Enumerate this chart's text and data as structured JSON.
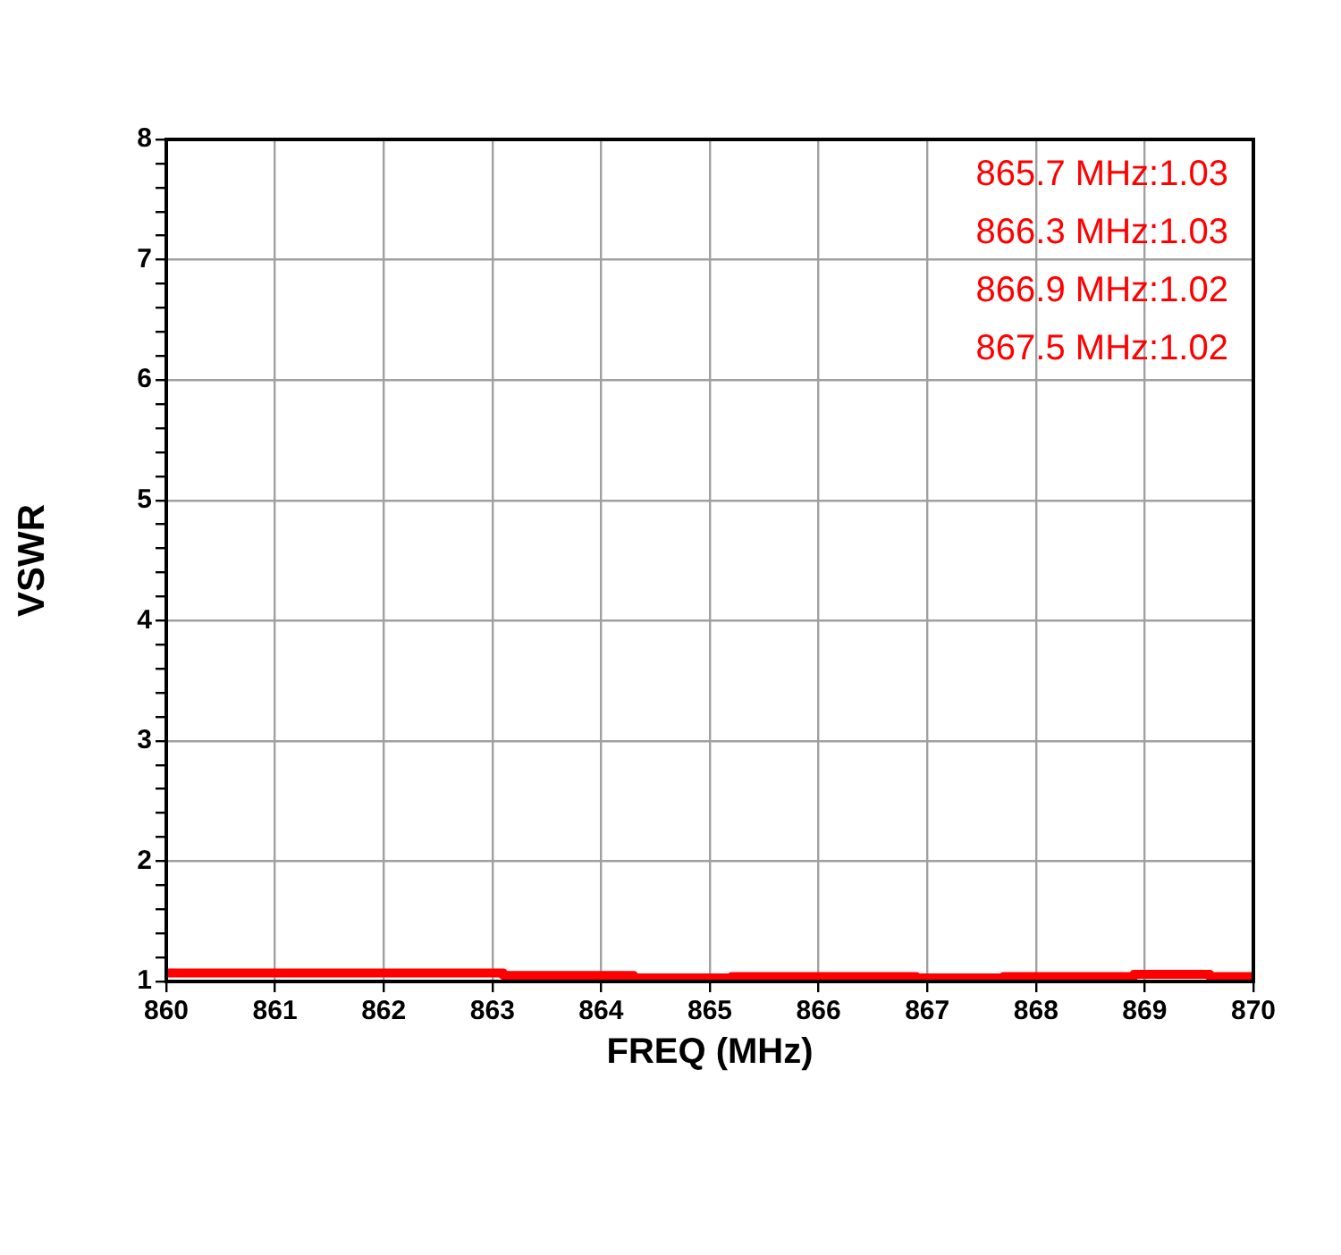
{
  "chart_data": {
    "type": "step",
    "xlabel": "FREQ (MHz)",
    "ylabel": "VSWR",
    "x": [
      860,
      863.1,
      864.3,
      865.2,
      866.9,
      867.7,
      868.9,
      869.6,
      870
    ],
    "series": [
      {
        "color": "#ff0000",
        "values": [
          1.07,
          1.05,
          1.03,
          1.04,
          1.03,
          1.04,
          1.06,
          1.04,
          1.04
        ]
      }
    ],
    "xlim": [
      860,
      870
    ],
    "xticks": [
      860,
      861,
      862,
      863,
      864,
      865,
      866,
      867,
      868,
      869,
      870
    ],
    "ylim": [
      1,
      8
    ],
    "yticks": [
      1,
      {
        "value": 1.2,
        "label": null
      },
      {
        "value": 1.4,
        "label": null
      },
      {
        "value": 1.6,
        "label": null
      },
      {
        "value": 1.8,
        "label": null
      },
      2,
      {
        "value": 2.2,
        "label": null
      },
      {
        "value": 2.4,
        "label": null
      },
      {
        "value": 2.6,
        "label": null
      },
      {
        "value": 2.8,
        "label": null
      },
      3,
      {
        "value": 3.2,
        "label": null
      },
      {
        "value": 3.4,
        "label": null
      },
      {
        "value": 3.6,
        "label": null
      },
      {
        "value": 3.8,
        "label": null
      },
      4,
      {
        "value": 4.2,
        "label": null
      },
      {
        "value": 4.4,
        "label": null
      },
      {
        "value": 4.6,
        "label": null
      },
      {
        "value": 4.8,
        "label": null
      },
      5,
      {
        "value": 5.2,
        "label": null
      },
      {
        "value": 5.4,
        "label": null
      },
      {
        "value": 5.6,
        "label": null
      },
      {
        "value": 5.8,
        "label": null
      },
      6,
      {
        "value": 6.2,
        "label": null
      },
      {
        "value": 6.4,
        "label": null
      },
      {
        "value": 6.6,
        "label": null
      },
      {
        "value": 6.8,
        "label": null
      },
      7,
      {
        "value": 7.2,
        "label": null
      },
      {
        "value": 7.4,
        "label": null
      },
      {
        "value": 7.6,
        "label": null
      },
      {
        "value": 7.8,
        "label": null
      },
      8
    ],
    "grid": true,
    "legend": false,
    "annotations": [
      "865.7 MHz:1.03",
      "866.3 MHz:1.03",
      "866.9 MHz:1.02",
      "867.5 MHz:1.02"
    ]
  }
}
